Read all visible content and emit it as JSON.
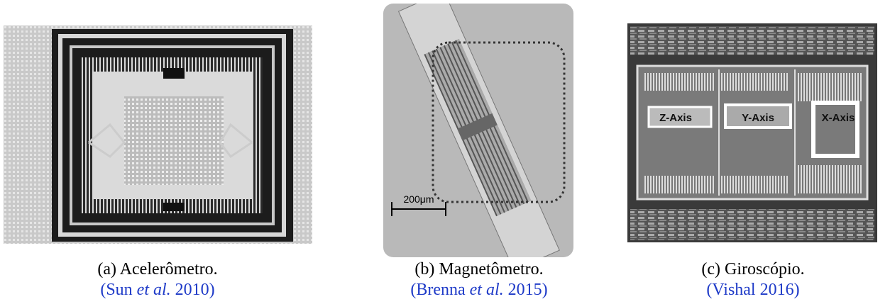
{
  "panels": [
    {
      "caption": "(a) Acelerômetro.",
      "citation": [
        "(Sun",
        "et al.",
        "2010)"
      ]
    },
    {
      "caption": "(b) Magnetômetro.",
      "citation": [
        "(Brenna",
        "et al.",
        "2015)"
      ],
      "image": {
        "scale_label": "200μm"
      }
    },
    {
      "caption": "(c) Giroscópio.",
      "citation": [
        "(Vishal 2016)"
      ],
      "image": {
        "labels": [
          "Z-Axis",
          "Y-Axis",
          "X-Axis"
        ]
      }
    }
  ]
}
